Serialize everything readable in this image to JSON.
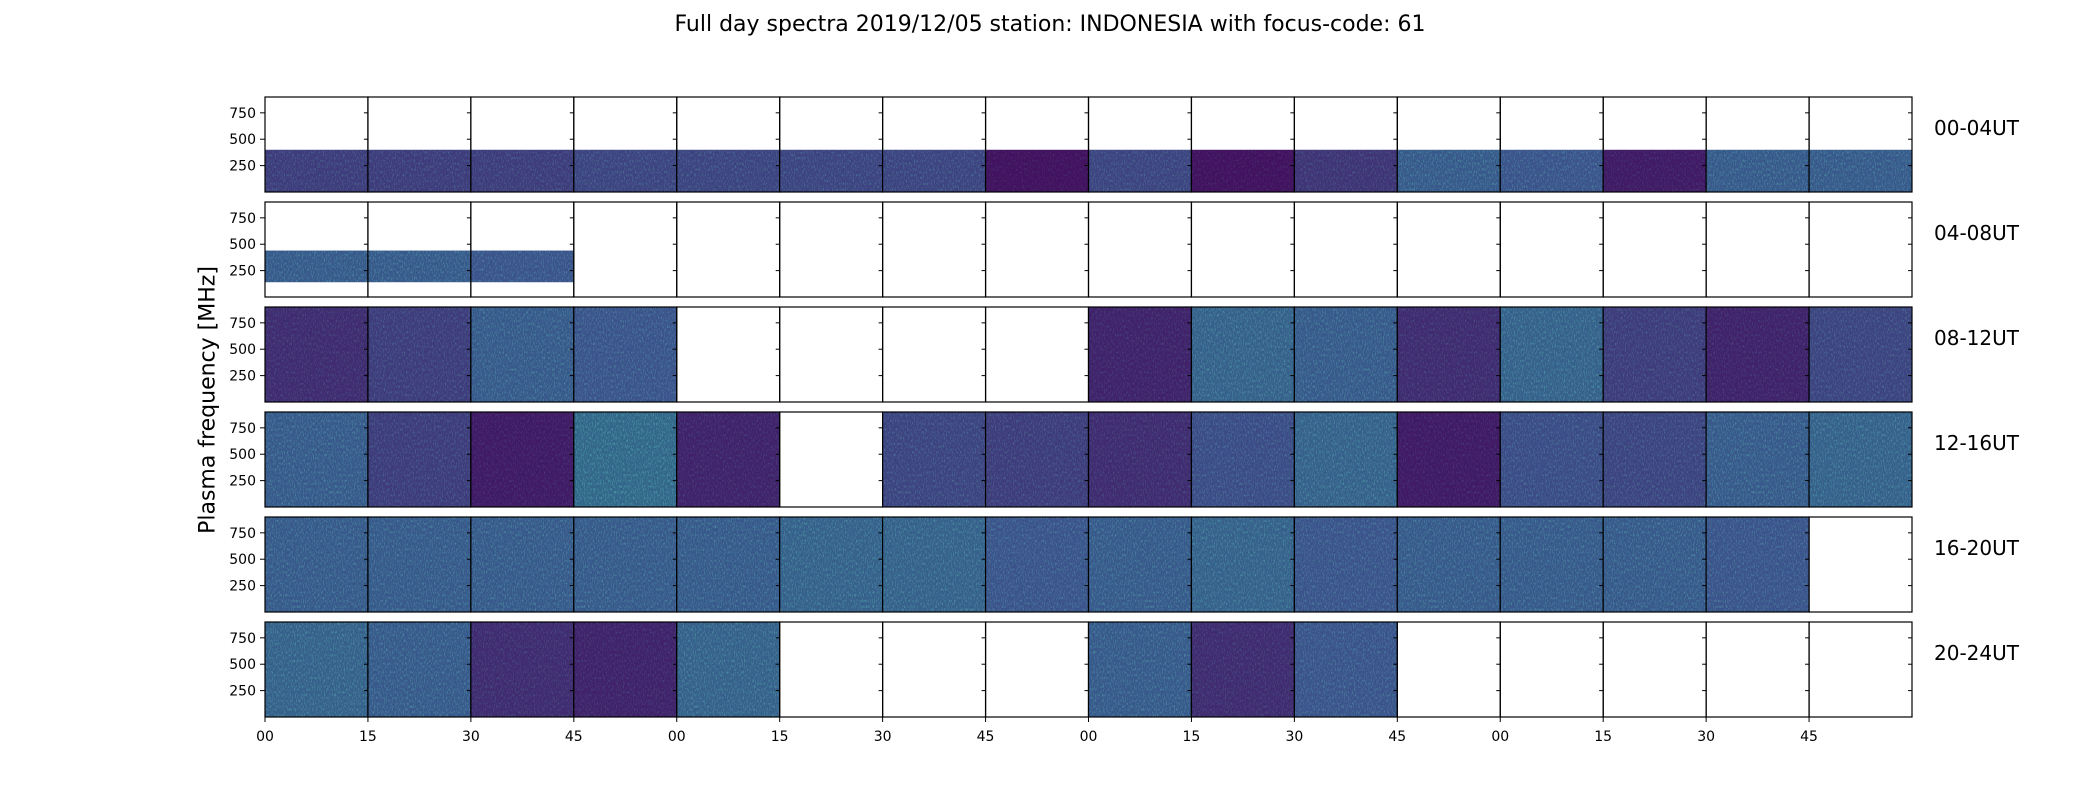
{
  "title": "Full day spectra 2019/12/05 station: INDONESIA with focus-code: 61",
  "colors": {
    "low": "#440154",
    "mid": "#3b528b",
    "high": "#21918c",
    "bright": "#5ec962",
    "frame": "#000000"
  },
  "chart_data": {
    "type": "heatmap",
    "title": "Full day spectra 2019/12/05 station: INDONESIA with focus-code: 61",
    "ylabel": "Plasma frequency [MHz]",
    "xlabel": "",
    "yticks": [
      "250",
      "500",
      "750"
    ],
    "ytick_values": [
      250,
      500,
      750
    ],
    "ylim": [
      0,
      900
    ],
    "xtick_labels": [
      "00",
      "15",
      "30",
      "45",
      "00",
      "15",
      "30",
      "45",
      "00",
      "15",
      "30",
      "45",
      "00",
      "15",
      "30",
      "45"
    ],
    "minutes_per_panel": 15,
    "panels_per_row": 16,
    "rows": [
      {
        "label": "00-04UT",
        "panels": [
          {
            "present": true,
            "band": [
              0,
              400
            ],
            "intensity": 0.35
          },
          {
            "present": true,
            "band": [
              0,
              400
            ],
            "intensity": 0.35
          },
          {
            "present": true,
            "band": [
              0,
              400
            ],
            "intensity": 0.35
          },
          {
            "present": true,
            "band": [
              0,
              400
            ],
            "intensity": 0.4
          },
          {
            "present": true,
            "band": [
              0,
              400
            ],
            "intensity": 0.4
          },
          {
            "present": true,
            "band": [
              0,
              400
            ],
            "intensity": 0.4
          },
          {
            "present": true,
            "band": [
              0,
              400
            ],
            "intensity": 0.4
          },
          {
            "present": true,
            "band": [
              0,
              400
            ],
            "intensity": 0.1
          },
          {
            "present": true,
            "band": [
              0,
              400
            ],
            "intensity": 0.4
          },
          {
            "present": true,
            "band": [
              0,
              400
            ],
            "intensity": 0.1
          },
          {
            "present": true,
            "band": [
              0,
              400
            ],
            "intensity": 0.3
          },
          {
            "present": true,
            "band": [
              0,
              400
            ],
            "intensity": 0.55
          },
          {
            "present": true,
            "band": [
              0,
              400
            ],
            "intensity": 0.5
          },
          {
            "present": true,
            "band": [
              0,
              400
            ],
            "intensity": 0.15
          },
          {
            "present": true,
            "band": [
              0,
              400
            ],
            "intensity": 0.55
          },
          {
            "present": true,
            "band": [
              0,
              400
            ],
            "intensity": 0.55
          }
        ]
      },
      {
        "label": "04-08UT",
        "panels": [
          {
            "present": true,
            "band": [
              140,
              440
            ],
            "intensity": 0.55
          },
          {
            "present": true,
            "band": [
              140,
              440
            ],
            "intensity": 0.55
          },
          {
            "present": true,
            "band": [
              140,
              440
            ],
            "intensity": 0.5
          },
          {
            "present": false
          },
          {
            "present": false
          },
          {
            "present": false
          },
          {
            "present": false
          },
          {
            "present": false
          },
          {
            "present": false
          },
          {
            "present": false
          },
          {
            "present": false
          },
          {
            "present": false
          },
          {
            "present": false
          },
          {
            "present": false
          },
          {
            "present": false
          },
          {
            "present": false
          }
        ]
      },
      {
        "label": "08-12UT",
        "panels": [
          {
            "present": true,
            "band": [
              0,
              900
            ],
            "intensity": 0.25
          },
          {
            "present": true,
            "band": [
              0,
              900
            ],
            "intensity": 0.35
          },
          {
            "present": true,
            "band": [
              0,
              900
            ],
            "intensity": 0.55
          },
          {
            "present": true,
            "band": [
              0,
              900
            ],
            "intensity": 0.5
          },
          {
            "present": false
          },
          {
            "present": false
          },
          {
            "present": false
          },
          {
            "present": false
          },
          {
            "present": true,
            "band": [
              0,
              900
            ],
            "intensity": 0.2
          },
          {
            "present": true,
            "band": [
              0,
              900
            ],
            "intensity": 0.6
          },
          {
            "present": true,
            "band": [
              0,
              900
            ],
            "intensity": 0.55
          },
          {
            "present": true,
            "band": [
              0,
              900
            ],
            "intensity": 0.25
          },
          {
            "present": true,
            "band": [
              0,
              900
            ],
            "intensity": 0.6
          },
          {
            "present": true,
            "band": [
              0,
              900
            ],
            "intensity": 0.35
          },
          {
            "present": true,
            "band": [
              0,
              900
            ],
            "intensity": 0.2
          },
          {
            "present": true,
            "band": [
              0,
              900
            ],
            "intensity": 0.4
          }
        ]
      },
      {
        "label": "12-16UT",
        "panels": [
          {
            "present": true,
            "band": [
              0,
              900
            ],
            "intensity": 0.55
          },
          {
            "present": true,
            "band": [
              0,
              900
            ],
            "intensity": 0.35
          },
          {
            "present": true,
            "band": [
              0,
              900
            ],
            "intensity": 0.15
          },
          {
            "present": true,
            "band": [
              0,
              900
            ],
            "intensity": 0.65
          },
          {
            "present": true,
            "band": [
              0,
              900
            ],
            "intensity": 0.2
          },
          {
            "present": false
          },
          {
            "present": true,
            "band": [
              0,
              900
            ],
            "intensity": 0.4
          },
          {
            "present": true,
            "band": [
              0,
              900
            ],
            "intensity": 0.35
          },
          {
            "present": true,
            "band": [
              0,
              900
            ],
            "intensity": 0.25
          },
          {
            "present": true,
            "band": [
              0,
              900
            ],
            "intensity": 0.45
          },
          {
            "present": true,
            "band": [
              0,
              900
            ],
            "intensity": 0.6
          },
          {
            "present": true,
            "band": [
              0,
              900
            ],
            "intensity": 0.15
          },
          {
            "present": true,
            "band": [
              0,
              900
            ],
            "intensity": 0.45
          },
          {
            "present": true,
            "band": [
              0,
              900
            ],
            "intensity": 0.4
          },
          {
            "present": true,
            "band": [
              0,
              900
            ],
            "intensity": 0.55
          },
          {
            "present": true,
            "band": [
              0,
              900
            ],
            "intensity": 0.6
          }
        ]
      },
      {
        "label": "16-20UT",
        "panels": [
          {
            "present": true,
            "band": [
              0,
              900
            ],
            "intensity": 0.55
          },
          {
            "present": true,
            "band": [
              0,
              900
            ],
            "intensity": 0.55
          },
          {
            "present": true,
            "band": [
              0,
              900
            ],
            "intensity": 0.55
          },
          {
            "present": true,
            "band": [
              0,
              900
            ],
            "intensity": 0.55
          },
          {
            "present": true,
            "band": [
              0,
              900
            ],
            "intensity": 0.55
          },
          {
            "present": true,
            "band": [
              0,
              900
            ],
            "intensity": 0.6
          },
          {
            "present": true,
            "band": [
              0,
              900
            ],
            "intensity": 0.6
          },
          {
            "present": true,
            "band": [
              0,
              900
            ],
            "intensity": 0.5
          },
          {
            "present": true,
            "band": [
              0,
              900
            ],
            "intensity": 0.55
          },
          {
            "present": true,
            "band": [
              0,
              900
            ],
            "intensity": 0.6
          },
          {
            "present": true,
            "band": [
              0,
              900
            ],
            "intensity": 0.5
          },
          {
            "present": true,
            "band": [
              0,
              900
            ],
            "intensity": 0.55
          },
          {
            "present": true,
            "band": [
              0,
              900
            ],
            "intensity": 0.55
          },
          {
            "present": true,
            "band": [
              0,
              900
            ],
            "intensity": 0.55
          },
          {
            "present": true,
            "band": [
              0,
              900
            ],
            "intensity": 0.5
          },
          {
            "present": false
          }
        ]
      },
      {
        "label": "20-24UT",
        "panels": [
          {
            "present": true,
            "band": [
              0,
              900
            ],
            "intensity": 0.6
          },
          {
            "present": true,
            "band": [
              0,
              900
            ],
            "intensity": 0.55
          },
          {
            "present": true,
            "band": [
              0,
              900
            ],
            "intensity": 0.25
          },
          {
            "present": true,
            "band": [
              0,
              900
            ],
            "intensity": 0.2
          },
          {
            "present": true,
            "band": [
              0,
              900
            ],
            "intensity": 0.6
          },
          {
            "present": false
          },
          {
            "present": false
          },
          {
            "present": false
          },
          {
            "present": true,
            "band": [
              0,
              900
            ],
            "intensity": 0.55
          },
          {
            "present": true,
            "band": [
              0,
              900
            ],
            "intensity": 0.25
          },
          {
            "present": true,
            "band": [
              0,
              900
            ],
            "intensity": 0.5
          },
          {
            "present": false
          },
          {
            "present": false
          },
          {
            "present": false
          },
          {
            "present": false
          },
          {
            "present": false
          }
        ]
      }
    ]
  }
}
